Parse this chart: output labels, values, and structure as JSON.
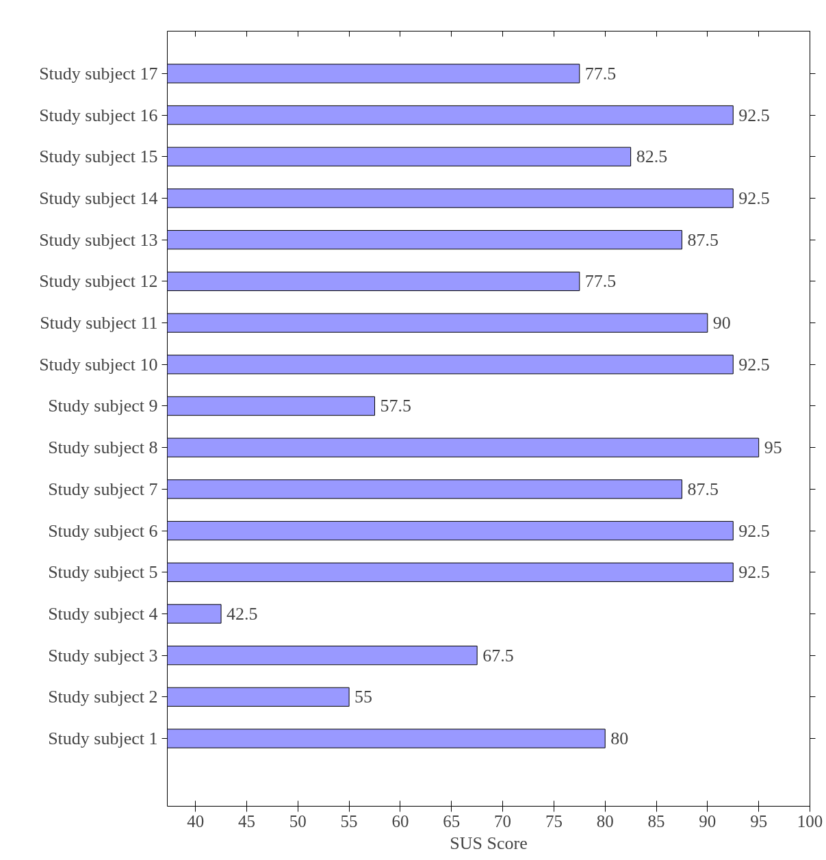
{
  "chart_data": {
    "type": "bar",
    "orientation": "horizontal",
    "xlabel": "SUS Score",
    "categories": [
      "Study subject 17",
      "Study subject 16",
      "Study subject 15",
      "Study subject 14",
      "Study subject 13",
      "Study subject 12",
      "Study subject 11",
      "Study subject 10",
      "Study subject 9",
      "Study subject 8",
      "Study subject 7",
      "Study subject 6",
      "Study subject 5",
      "Study subject 4",
      "Study subject 3",
      "Study subject 2",
      "Study subject 1"
    ],
    "values": [
      77.5,
      92.5,
      82.5,
      92.5,
      87.5,
      77.5,
      90,
      92.5,
      57.5,
      95,
      87.5,
      92.5,
      92.5,
      42.5,
      67.5,
      55,
      80
    ],
    "color": "#9999ff",
    "xlim": [
      37.25,
      100
    ],
    "xticks": [
      40,
      45,
      50,
      55,
      60,
      65,
      70,
      75,
      80,
      85,
      90,
      95,
      100
    ],
    "data_labels": true,
    "grid": false
  }
}
